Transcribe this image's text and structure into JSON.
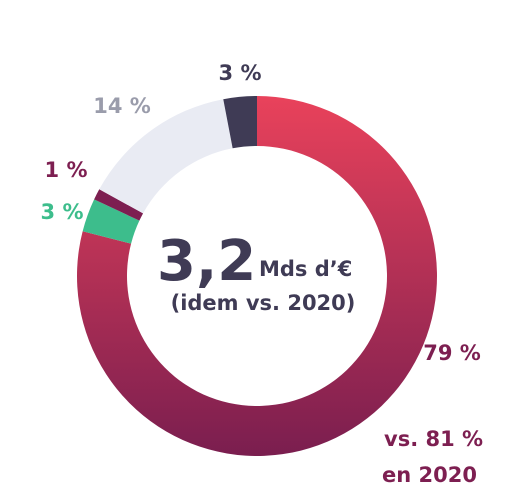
{
  "chart_data": {
    "type": "pie",
    "donut": true,
    "title": "",
    "center": {
      "value": "3,2",
      "unit": "Mds d’€",
      "subtitle": "(idem vs. 2020)"
    },
    "slices": [
      {
        "value": 79,
        "label": "79 %",
        "color": "#8f1f52",
        "gradient": [
          "#e9425b",
          "#7a1e4f"
        ]
      },
      {
        "value": 3,
        "label": "3 %",
        "color": "#3dbd8c"
      },
      {
        "value": 1,
        "label": "1 %",
        "color": "#7d1f51"
      },
      {
        "value": 14,
        "label": "14 %",
        "color": "#e9ebf3"
      },
      {
        "value": 3,
        "label": "3 %",
        "color": "#3f3b55"
      }
    ],
    "label_colors": [
      "#7d1f51",
      "#3dbd8c",
      "#7d1f51",
      "#9a9cab",
      "#3f3b55"
    ],
    "note": {
      "line1": "vs. 81 %",
      "line2": "en 2020"
    },
    "start_angle": "top",
    "direction": "clockwise",
    "legend": "none"
  }
}
